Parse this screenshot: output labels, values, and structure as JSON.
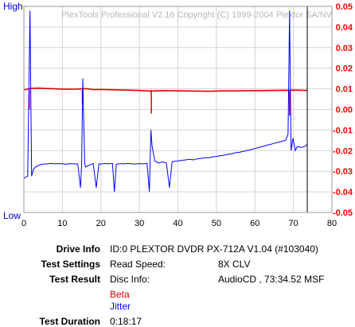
{
  "chart_data": {
    "type": "line",
    "title": "PlexTools Professional V2.16 Copyright (C) 1999-2004 Plextor SA/NV",
    "xlim": [
      0,
      80
    ],
    "x_ticks": [
      "0",
      "10",
      "20",
      "30",
      "40",
      "50",
      "60",
      "70",
      "80"
    ],
    "left_axis": {
      "top_label": "High",
      "bottom_label": "Low"
    },
    "right_axis": {
      "ylim": [
        -0.05,
        0.05
      ],
      "ticks": [
        "0.05",
        "0.04",
        "0.03",
        "0.02",
        "0.01",
        "0.00",
        "-0.01",
        "-0.02",
        "-0.03",
        "-0.04",
        "-0.05"
      ],
      "color": "#ff0000"
    },
    "grid": true,
    "disc_end_x": 73.6,
    "series": [
      {
        "name": "Beta",
        "color": "#e00000",
        "axis": "right",
        "x": [
          0,
          2,
          4,
          6,
          8,
          10,
          14,
          16,
          18,
          20,
          24,
          28,
          30,
          32,
          33,
          34,
          36,
          40,
          44,
          48,
          52,
          56,
          60,
          64,
          68,
          69,
          70,
          72,
          73.6
        ],
        "y": [
          0.0095,
          0.0102,
          0.0103,
          0.0101,
          0.01,
          0.0098,
          0.0099,
          0.0101,
          0.0096,
          0.0097,
          0.0095,
          0.0093,
          0.0092,
          0.009,
          0.0088,
          0.009,
          0.0091,
          0.009,
          0.0089,
          0.0088,
          0.009,
          0.009,
          0.0091,
          0.0092,
          0.0093,
          0.0092,
          0.0094,
          0.0093,
          0.0092
        ],
        "spikes": [
          {
            "x": 1.4,
            "y": 0.0
          },
          {
            "x": 15.2,
            "y": 0.003
          },
          {
            "x": 33.1,
            "y": -0.002
          },
          {
            "x": 69.0,
            "y": -0.003
          }
        ]
      },
      {
        "name": "Jitter",
        "color": "#0000ff",
        "axis": "left",
        "x": [
          0,
          0.5,
          1,
          1.6,
          2,
          2.5,
          3,
          4,
          5,
          6,
          7,
          8,
          9,
          10,
          11,
          12,
          13,
          14,
          14.7,
          15,
          15.3,
          15.8,
          16,
          17,
          18,
          18.8,
          19.5,
          20,
          21,
          22,
          23,
          23.5,
          24,
          25,
          26,
          27,
          28,
          29,
          30,
          31,
          32,
          32.6,
          33,
          33.3,
          34,
          35,
          36,
          37,
          37.8,
          38.5,
          39,
          40,
          41,
          42,
          43,
          44,
          45,
          46,
          47,
          48,
          49,
          50,
          51,
          52,
          53,
          54,
          55,
          56,
          57,
          58,
          59,
          60,
          61,
          62,
          63,
          64,
          65,
          66,
          67,
          68,
          68.6,
          69,
          69.4,
          69.9,
          70.5,
          71,
          72,
          73,
          73.6
        ],
        "y": [
          0.164,
          0.172,
          0.176,
          0.98,
          0.176,
          0.21,
          0.22,
          0.23,
          0.235,
          0.235,
          0.238,
          0.236,
          0.237,
          0.236,
          0.234,
          0.237,
          0.236,
          0.235,
          0.12,
          0.235,
          0.65,
          0.24,
          0.22,
          0.23,
          0.238,
          0.12,
          0.236,
          0.235,
          0.238,
          0.236,
          0.238,
          0.1,
          0.234,
          0.237,
          0.236,
          0.238,
          0.236,
          0.235,
          0.237,
          0.236,
          0.238,
          0.1,
          0.4,
          0.32,
          0.25,
          0.24,
          0.245,
          0.24,
          0.12,
          0.245,
          0.248,
          0.25,
          0.253,
          0.255,
          0.258,
          0.255,
          0.26,
          0.262,
          0.266,
          0.265,
          0.27,
          0.272,
          0.275,
          0.278,
          0.282,
          0.285,
          0.29,
          0.292,
          0.296,
          0.3,
          0.305,
          0.31,
          0.315,
          0.32,
          0.326,
          0.33,
          0.335,
          0.34,
          0.345,
          0.35,
          0.38,
          0.98,
          0.3,
          0.36,
          0.3,
          0.32,
          0.315,
          0.32,
          0.33
        ]
      }
    ]
  },
  "info": {
    "drive_info_label": "Drive Info",
    "drive_info_value": "ID:0 PLEXTOR DVDR PX-712A V1.04 (#103040)",
    "test_settings_label": "Test Settings",
    "read_speed_label": "Read Speed:",
    "read_speed_value": "8X CLV",
    "test_result_label": "Test Result",
    "disc_info_label": "Disc Info:",
    "disc_info_value": "AudioCD , 73:34.52 MSF",
    "beta_label": "Beta",
    "jitter_label": "Jitter",
    "test_duration_label": "Test Duration",
    "test_duration_value": "0:18:17"
  }
}
